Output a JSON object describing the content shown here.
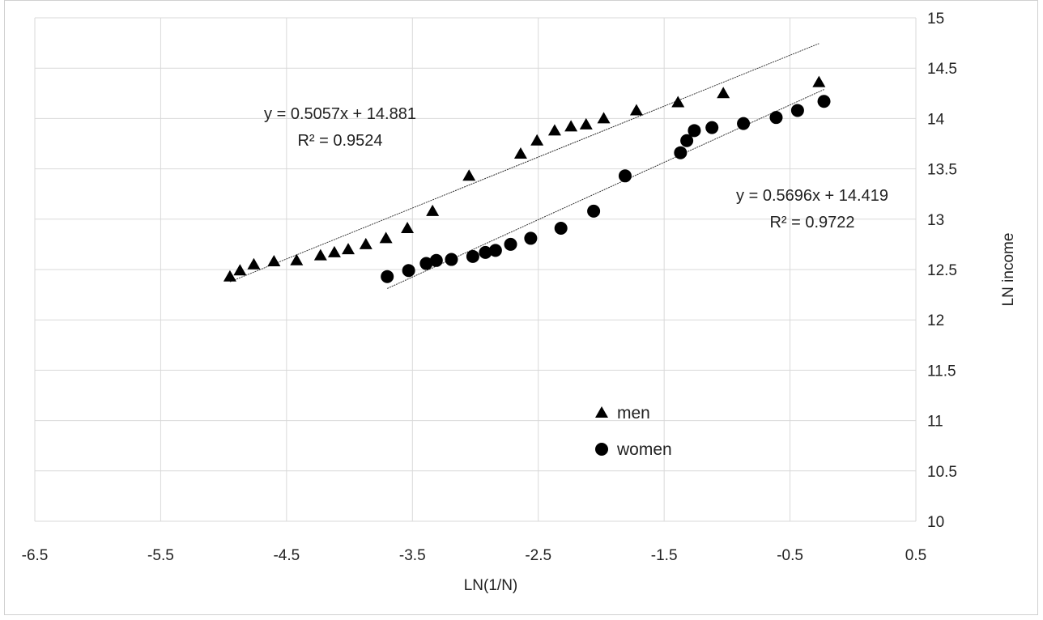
{
  "chart_data": {
    "type": "scatter",
    "xlabel": "LN(1/N)",
    "ylabel": "LN income",
    "xlim": [
      -6.5,
      0.5
    ],
    "ylim": [
      10,
      15
    ],
    "xticks": [
      -6.5,
      -5.5,
      -4.5,
      -3.5,
      -2.5,
      -1.5,
      -0.5,
      0.5
    ],
    "yticks": [
      10,
      10.5,
      11,
      11.5,
      12,
      12.5,
      13,
      13.5,
      14,
      14.5,
      15
    ],
    "xtick_labels": [
      "-6.5",
      "-5.5",
      "-4.5",
      "-3.5",
      "-2.5",
      "-1.5",
      "-0.5",
      "0.5"
    ],
    "ytick_labels": [
      "10",
      "10.5",
      "11",
      "11.5",
      "12",
      "12.5",
      "13",
      "13.5",
      "14",
      "14.5",
      "15"
    ],
    "grid": true,
    "y_axis_side": "right",
    "legend_position": "center",
    "series": [
      {
        "name": "men",
        "marker": "triangle",
        "color": "#000000",
        "points": [
          [
            -4.95,
            12.43
          ],
          [
            -4.87,
            12.49
          ],
          [
            -4.76,
            12.55
          ],
          [
            -4.6,
            12.58
          ],
          [
            -4.42,
            12.59
          ],
          [
            -4.23,
            12.64
          ],
          [
            -4.12,
            12.67
          ],
          [
            -4.01,
            12.7
          ],
          [
            -3.87,
            12.75
          ],
          [
            -3.71,
            12.81
          ],
          [
            -3.54,
            12.91
          ],
          [
            -3.34,
            13.08
          ],
          [
            -3.05,
            13.43
          ],
          [
            -2.64,
            13.65
          ],
          [
            -2.51,
            13.78
          ],
          [
            -2.37,
            13.88
          ],
          [
            -2.24,
            13.92
          ],
          [
            -2.12,
            13.94
          ],
          [
            -1.98,
            14.0
          ],
          [
            -1.72,
            14.08
          ],
          [
            -1.39,
            14.16
          ],
          [
            -1.03,
            14.25
          ],
          [
            -0.27,
            14.36
          ]
        ],
        "trendline": {
          "equation": "y = 0.5057x + 14.881",
          "r2": "R² = 0.9524",
          "slope": 0.5057,
          "intercept": 14.881,
          "x_range": [
            -4.95,
            -0.27
          ]
        }
      },
      {
        "name": "women",
        "marker": "circle",
        "color": "#000000",
        "points": [
          [
            -3.7,
            12.43
          ],
          [
            -3.53,
            12.49
          ],
          [
            -3.39,
            12.56
          ],
          [
            -3.31,
            12.59
          ],
          [
            -3.19,
            12.6
          ],
          [
            -3.02,
            12.63
          ],
          [
            -2.92,
            12.67
          ],
          [
            -2.84,
            12.69
          ],
          [
            -2.72,
            12.75
          ],
          [
            -2.56,
            12.81
          ],
          [
            -2.32,
            12.91
          ],
          [
            -2.06,
            13.08
          ],
          [
            -1.81,
            13.43
          ],
          [
            -1.37,
            13.66
          ],
          [
            -1.32,
            13.78
          ],
          [
            -1.26,
            13.88
          ],
          [
            -1.12,
            13.91
          ],
          [
            -0.87,
            13.95
          ],
          [
            -0.61,
            14.01
          ],
          [
            -0.44,
            14.08
          ],
          [
            -0.23,
            14.17
          ]
        ],
        "trendline": {
          "equation": "y = 0.5696x + 14.419",
          "r2": "R² = 0.9722",
          "slope": 0.5696,
          "intercept": 14.419,
          "x_range": [
            -3.7,
            -0.23
          ]
        }
      }
    ]
  }
}
